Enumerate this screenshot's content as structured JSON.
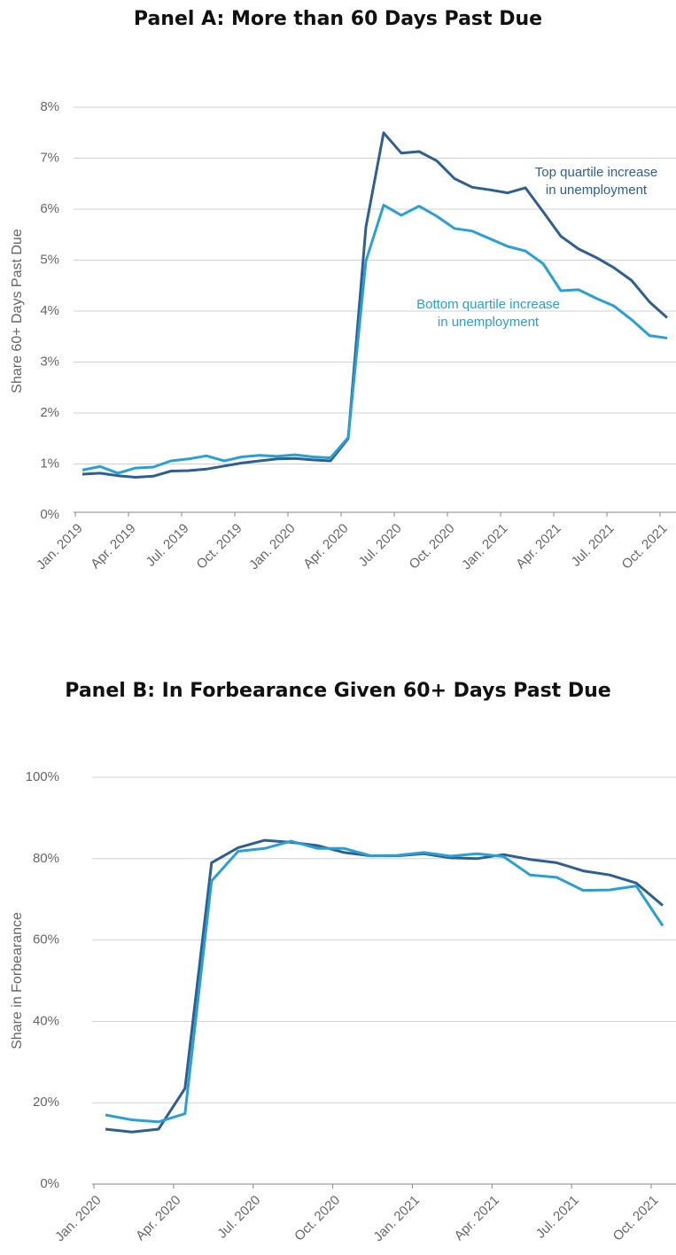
{
  "chart_data": [
    {
      "type": "line",
      "title": "Panel A: More than 60 Days Past Due",
      "ylabel": "Share 60+ Days Past Due",
      "categories": [
        "Jan. 2019",
        null,
        null,
        "Apr. 2019",
        null,
        null,
        "Jul. 2019",
        null,
        null,
        "Oct. 2019",
        null,
        null,
        "Jan. 2020",
        null,
        null,
        "Apr. 2020",
        null,
        null,
        "Jul. 2020",
        null,
        null,
        "Oct. 2020",
        null,
        null,
        "Jan. 2021",
        null,
        null,
        "Apr. 2021",
        null,
        null,
        "Jul. 2021",
        null,
        null,
        "Oct. 2021"
      ],
      "ylim": [
        0,
        8
      ],
      "yticks": [
        {
          "value": 0,
          "label": "0%"
        },
        {
          "value": 1,
          "label": "1%"
        },
        {
          "value": 2,
          "label": "2%"
        },
        {
          "value": 3,
          "label": "3%"
        },
        {
          "value": 4,
          "label": "4%"
        },
        {
          "value": 5,
          "label": "5%"
        },
        {
          "value": 6,
          "label": "6%"
        },
        {
          "value": 7,
          "label": "7%"
        },
        {
          "value": 8,
          "label": "8%"
        }
      ],
      "grid": true,
      "series": [
        {
          "name": "Top quartile increase in unemployment",
          "color": "#2e5f8f",
          "values": [
            0.8,
            0.82,
            0.77,
            0.74,
            0.76,
            0.86,
            0.87,
            0.9,
            0.96,
            1.02,
            1.06,
            1.1,
            1.11,
            1.08,
            1.06,
            1.5,
            5.65,
            7.5,
            7.1,
            7.13,
            6.95,
            6.6,
            6.43,
            6.38,
            6.32,
            6.42,
            5.95,
            5.47,
            5.22,
            5.05,
            4.85,
            4.6,
            4.18,
            3.87
          ]
        },
        {
          "name": "Bottom quartile increase in unemployment",
          "color": "#2a9fd3",
          "values": [
            0.88,
            0.95,
            0.82,
            0.92,
            0.94,
            1.06,
            1.1,
            1.16,
            1.06,
            1.14,
            1.17,
            1.15,
            1.18,
            1.14,
            1.12,
            1.52,
            4.98,
            6.08,
            5.88,
            6.06,
            5.86,
            5.62,
            5.57,
            5.42,
            5.27,
            5.18,
            4.93,
            4.4,
            4.42,
            4.25,
            4.1,
            3.83,
            3.52,
            3.47
          ]
        }
      ]
    },
    {
      "type": "line",
      "title": "Panel B: In Forbearance Given 60+ Days Past Due",
      "ylabel": "Share in Forbearance",
      "categories": [
        "Jan. 2020",
        null,
        null,
        "Apr. 2020",
        null,
        null,
        "Jul. 2020",
        null,
        null,
        "Oct. 2020",
        null,
        null,
        "Jan. 2021",
        null,
        null,
        "Apr. 2021",
        null,
        null,
        "Jul. 2021",
        null,
        null,
        "Oct. 2021"
      ],
      "ylim": [
        0,
        100
      ],
      "yticks": [
        {
          "value": 0,
          "label": "0%"
        },
        {
          "value": 20,
          "label": "20%"
        },
        {
          "value": 40,
          "label": "40%"
        },
        {
          "value": 60,
          "label": "60%"
        },
        {
          "value": 80,
          "label": "80%"
        },
        {
          "value": 100,
          "label": "100%"
        }
      ],
      "grid": true,
      "series": [
        {
          "color": "#2e5f8f",
          "values": [
            13.5,
            12.8,
            13.5,
            23.5,
            79,
            82.7,
            84.5,
            84,
            83.2,
            81.5,
            80.7,
            80.7,
            81.2,
            80.2,
            80,
            81,
            79.8,
            79,
            77,
            76,
            74,
            68.5
          ]
        },
        {
          "color": "#2a9fd3",
          "values": [
            17,
            15.8,
            15.3,
            17.3,
            74.5,
            81.8,
            82.5,
            84.3,
            82.5,
            82.5,
            80.7,
            80.8,
            81.5,
            80.6,
            81.2,
            80.5,
            76,
            75.4,
            72.2,
            72.3,
            73.3,
            63.5
          ]
        }
      ]
    }
  ]
}
